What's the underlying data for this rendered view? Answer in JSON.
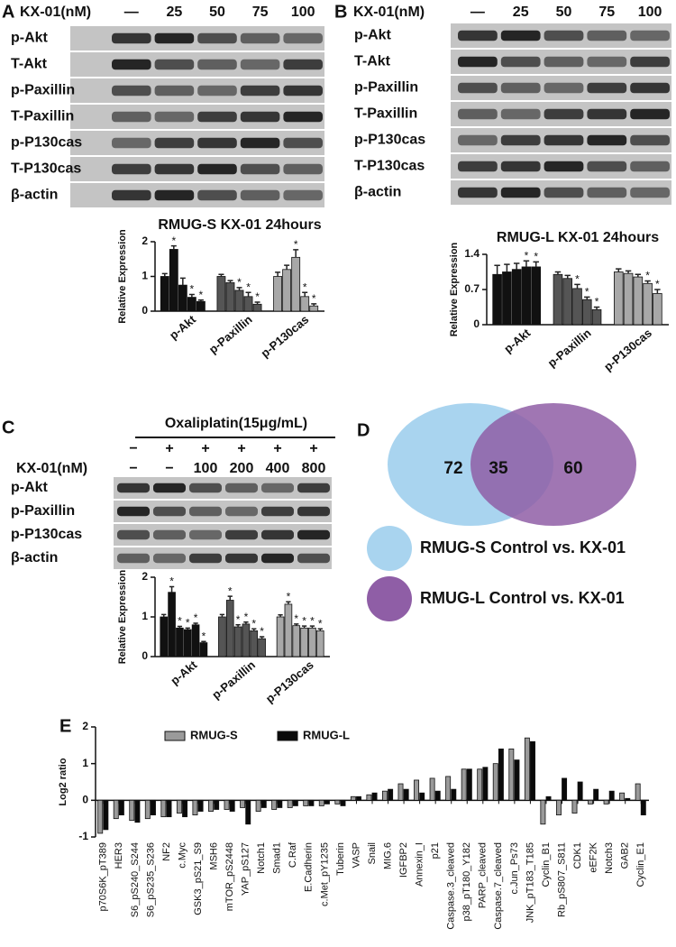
{
  "panels": {
    "A": {
      "letter": "A",
      "treatment_label": "KX-01(nM)",
      "lanes": [
        "—",
        "25",
        "50",
        "75",
        "100"
      ],
      "rows": [
        "p-Akt",
        "T-Akt",
        "p-Paxillin",
        "T-Paxillin",
        "p-P130cas",
        "T-P130cas",
        "β-actin"
      ]
    },
    "B": {
      "letter": "B",
      "treatment_label": "KX-01(nM)",
      "lanes": [
        "—",
        "25",
        "50",
        "75",
        "100"
      ],
      "rows": [
        "p-Akt",
        "T-Akt",
        "p-Paxillin",
        "T-Paxillin",
        "p-P130cas",
        "T-P130cas",
        "β-actin"
      ]
    },
    "C": {
      "letter": "C",
      "treatment_label": "Oxaliplatin(15μg/mL)",
      "oxaliplatin": [
        "−",
        "+",
        "+",
        "+",
        "+",
        "+"
      ],
      "kx_label": "KX-01(nM)",
      "kx": [
        "−",
        "−",
        "100",
        "200",
        "400",
        "800"
      ],
      "rows": [
        "p-Akt",
        "p-Paxillin",
        "p-P130cas",
        "β-actin"
      ]
    },
    "D": {
      "letter": "D",
      "counts": {
        "left": 72,
        "overlap": 35,
        "right": 60
      },
      "sets": [
        {
          "name": "RMUG-S Control vs. KX-01",
          "color": "#a9d4ef"
        },
        {
          "name": "RMUG-L Control vs. KX-01",
          "color": "#8f5ea6"
        }
      ]
    },
    "E": {
      "letter": "E"
    }
  },
  "chart_data": [
    {
      "type": "bar",
      "title": "RMUG-S KX-01 24hours",
      "y_label": "Relative Expression",
      "significance_marker": "*",
      "categories": [
        "p-Akt",
        "p-Paxillin",
        "p-P130cas"
      ],
      "category_colors": [
        "#111111",
        "#555555",
        "#a8a8a8"
      ],
      "series": [
        {
          "values": [
            1.0,
            1.0,
            1.0
          ],
          "errors": [
            0.08,
            0.06,
            0.12
          ],
          "significant": [
            false,
            false,
            false
          ]
        },
        {
          "values": [
            1.78,
            0.82,
            1.2
          ],
          "errors": [
            0.1,
            0.06,
            0.12
          ],
          "significant": [
            true,
            false,
            false
          ]
        },
        {
          "values": [
            0.75,
            0.6,
            1.55
          ],
          "errors": [
            0.2,
            0.08,
            0.22
          ],
          "significant": [
            false,
            true,
            true
          ]
        },
        {
          "values": [
            0.4,
            0.42,
            0.42
          ],
          "errors": [
            0.08,
            0.12,
            0.12
          ],
          "significant": [
            true,
            true,
            true
          ]
        },
        {
          "values": [
            0.28,
            0.2,
            0.15
          ],
          "errors": [
            0.04,
            0.06,
            0.06
          ],
          "significant": [
            true,
            true,
            true
          ]
        }
      ],
      "ylim": [
        0,
        2
      ],
      "yticks": [
        0,
        1,
        2
      ]
    },
    {
      "type": "bar",
      "title": "RMUG-L KX-01 24hours",
      "y_label": "Relative Expression",
      "significance_marker": "*",
      "categories": [
        "p-Akt",
        "p-Paxillin",
        "p-P130cas"
      ],
      "category_colors": [
        "#111111",
        "#555555",
        "#a8a8a8"
      ],
      "series": [
        {
          "values": [
            1.0,
            1.0,
            1.05
          ],
          "errors": [
            0.18,
            0.05,
            0.06
          ],
          "significant": [
            false,
            false,
            false
          ]
        },
        {
          "values": [
            1.05,
            0.92,
            1.02
          ],
          "errors": [
            0.15,
            0.06,
            0.05
          ],
          "significant": [
            false,
            false,
            false
          ]
        },
        {
          "values": [
            1.1,
            0.72,
            0.95
          ],
          "errors": [
            0.12,
            0.08,
            0.05
          ],
          "significant": [
            false,
            true,
            false
          ]
        },
        {
          "values": [
            1.15,
            0.5,
            0.82
          ],
          "errors": [
            0.12,
            0.05,
            0.05
          ],
          "significant": [
            true,
            true,
            true
          ]
        },
        {
          "values": [
            1.15,
            0.3,
            0.62
          ],
          "errors": [
            0.1,
            0.05,
            0.08
          ],
          "significant": [
            true,
            true,
            true
          ]
        }
      ],
      "ylim": [
        0,
        1.4
      ],
      "yticks": [
        0,
        0.7,
        1.4
      ]
    },
    {
      "type": "bar",
      "y_label": "Relative Expression",
      "significance_marker": "*",
      "categories": [
        "p-Akt",
        "p-Paxillin",
        "p-P130cas"
      ],
      "category_colors": [
        "#111111",
        "#555555",
        "#a8a8a8"
      ],
      "series": [
        {
          "values": [
            1.0,
            1.0,
            1.0
          ],
          "errors": [
            0.06,
            0.06,
            0.05
          ],
          "significant": [
            false,
            false,
            false
          ]
        },
        {
          "values": [
            1.62,
            1.42,
            1.32
          ],
          "errors": [
            0.14,
            0.1,
            0.06
          ],
          "significant": [
            true,
            true,
            true
          ]
        },
        {
          "values": [
            0.72,
            0.75,
            0.78
          ],
          "errors": [
            0.04,
            0.05,
            0.04
          ],
          "significant": [
            true,
            true,
            true
          ]
        },
        {
          "values": [
            0.68,
            0.82,
            0.72
          ],
          "errors": [
            0.04,
            0.05,
            0.05
          ],
          "significant": [
            true,
            true,
            true
          ]
        },
        {
          "values": [
            0.8,
            0.65,
            0.72
          ],
          "errors": [
            0.04,
            0.05,
            0.05
          ],
          "significant": [
            true,
            true,
            true
          ]
        },
        {
          "values": [
            0.35,
            0.45,
            0.65
          ],
          "errors": [
            0.03,
            0.05,
            0.05
          ],
          "significant": [
            true,
            true,
            true
          ]
        }
      ],
      "ylim": [
        0,
        2
      ],
      "yticks": [
        0,
        1,
        2
      ]
    },
    {
      "type": "bar",
      "y_label": "Log2 ratio",
      "legend": "top",
      "categories": [
        "p70S6K_pT389",
        "HER3",
        "S6_pS240_S244",
        "S6_pS235_S236",
        "NF2",
        "c.Myc",
        "GSK3_pS21_S9",
        "MSH6",
        "mTOR_pS2448",
        "YAP_pS127",
        "Notch1",
        "Smad1",
        "C.Raf",
        "E.Cadherin",
        "c.Met_pY1235",
        "Tuberin",
        "VASP",
        "Snail",
        "MIG.6",
        "IGFBP2",
        "Annexin_I",
        "p21",
        "Caspase.3_cleaved",
        "p38_pT180_Y182",
        "PARP_cleaved",
        "Caspase.7_cleaved",
        "c.Jun_Ps73",
        "JNK_pT183_T185",
        "Cyclin_B1",
        "Rb_pS807_S811",
        "CDK1",
        "eEF2K",
        "Notch3",
        "GAB2",
        "Cyclin_E1"
      ],
      "series": [
        {
          "name": "RMUG-S",
          "color": "#9a9a9a",
          "values": [
            -0.9,
            -0.5,
            -0.55,
            -0.5,
            -0.45,
            -0.35,
            -0.4,
            -0.3,
            -0.25,
            -0.2,
            -0.3,
            -0.25,
            -0.2,
            -0.15,
            -0.15,
            -0.1,
            0.1,
            0.15,
            0.25,
            0.45,
            0.55,
            0.6,
            0.65,
            0.85,
            0.85,
            1.0,
            1.4,
            1.7,
            -0.65,
            -0.4,
            -0.35,
            -0.1,
            -0.1,
            0.2,
            0.45
          ]
        },
        {
          "name": "RMUG-L",
          "color": "#0a0a0a",
          "values": [
            -0.8,
            -0.4,
            -0.6,
            -0.4,
            -0.45,
            -0.45,
            -0.3,
            -0.25,
            -0.3,
            -0.65,
            -0.2,
            -0.2,
            -0.15,
            -0.15,
            -0.1,
            -0.15,
            0.1,
            0.2,
            0.3,
            0.3,
            0.2,
            0.25,
            0.3,
            0.85,
            0.9,
            1.4,
            1.1,
            1.6,
            0.1,
            0.6,
            0.5,
            0.3,
            0.25,
            0.05,
            -0.4
          ]
        }
      ],
      "ylim": [
        -1,
        2
      ],
      "yticks": [
        -1,
        0,
        1,
        2
      ]
    }
  ]
}
